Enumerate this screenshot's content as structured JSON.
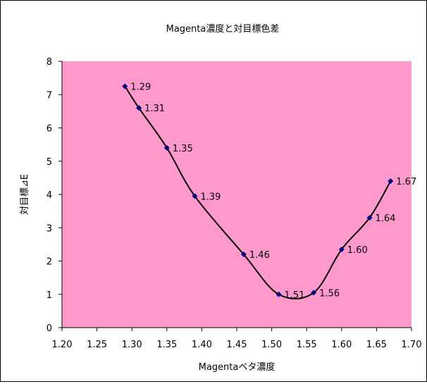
{
  "chart_data": {
    "type": "scatter",
    "title": "Magenta濃度と対目標色差",
    "xlabel": "Magentaベタ濃度",
    "ylabel": "対目標⊿E",
    "xlim": [
      1.2,
      1.7
    ],
    "ylim": [
      0,
      8
    ],
    "xticks": [
      "1.20",
      "1.25",
      "1.30",
      "1.35",
      "1.40",
      "1.45",
      "1.50",
      "1.55",
      "1.60",
      "1.65",
      "1.70"
    ],
    "yticks": [
      "0",
      "1",
      "2",
      "3",
      "4",
      "5",
      "6",
      "7",
      "8"
    ],
    "grid": false,
    "legend": false,
    "plot_background": "#FF99CC",
    "marker_color": "#000080",
    "trendline": "smooth curve through data",
    "points": [
      {
        "x": 1.29,
        "y": 7.25,
        "label": "1.29"
      },
      {
        "x": 1.31,
        "y": 6.6,
        "label": "1.31"
      },
      {
        "x": 1.35,
        "y": 5.4,
        "label": "1.35"
      },
      {
        "x": 1.39,
        "y": 3.95,
        "label": "1.39"
      },
      {
        "x": 1.46,
        "y": 2.2,
        "label": "1.46"
      },
      {
        "x": 1.51,
        "y": 1.0,
        "label": "1.51"
      },
      {
        "x": 1.56,
        "y": 1.05,
        "label": "1.56"
      },
      {
        "x": 1.6,
        "y": 2.35,
        "label": "1.60"
      },
      {
        "x": 1.64,
        "y": 3.3,
        "label": "1.64"
      },
      {
        "x": 1.67,
        "y": 4.4,
        "label": "1.67"
      }
    ]
  }
}
